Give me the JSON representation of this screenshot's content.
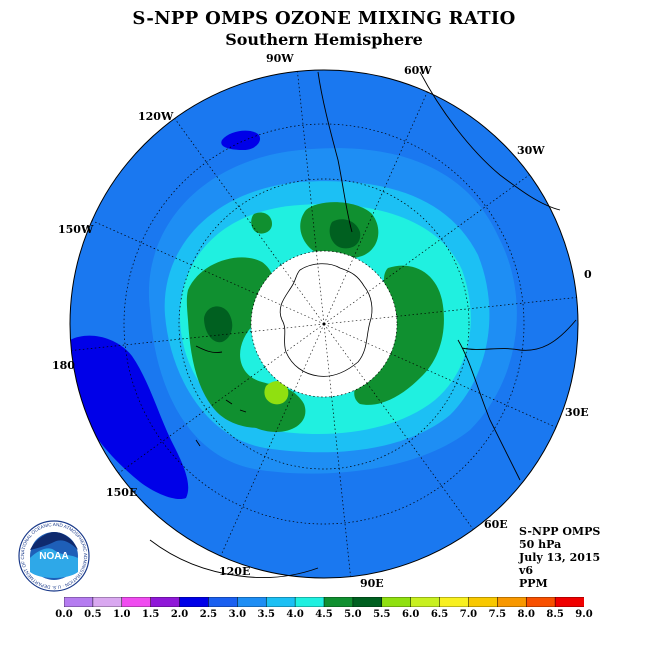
{
  "title": "S-NPP OMPS OZONE MIXING RATIO",
  "subtitle": "Southern Hemisphere",
  "longitude_labels": {
    "w90": "90W",
    "w60": "60W",
    "w30": "30W",
    "e0": "0",
    "e30": "30E",
    "e60": "60E",
    "e90": "90E",
    "e120": "120E",
    "e150": "150E",
    "e180": "180",
    "w150": "150W",
    "w120": "120W"
  },
  "info": {
    "instrument": "S-NPP OMPS",
    "level": "50 hPa",
    "date": "July 13, 2015",
    "version": "v6",
    "units": "PPM"
  },
  "logo": {
    "name": "NOAA",
    "ring_text": "NATIONAL OCEANIC AND ATMOSPHERIC ADMINISTRATION · U.S. DEPARTMENT OF COMMERCE"
  },
  "colorbar": {
    "ticks": [
      "0.0",
      "0.5",
      "1.0",
      "1.5",
      "2.0",
      "2.5",
      "3.0",
      "3.5",
      "4.0",
      "4.5",
      "5.0",
      "5.5",
      "6.0",
      "6.5",
      "7.0",
      "7.5",
      "8.0",
      "8.5",
      "9.0"
    ],
    "colors": [
      "#b57cf0",
      "#d9a8f0",
      "#f04cf0",
      "#9018d8",
      "#0000e8",
      "#1a60f0",
      "#1e8ef4",
      "#1cc0f4",
      "#20f0e0",
      "#109030",
      "#006020",
      "#90e010",
      "#c8f020",
      "#f8f020",
      "#f8c800",
      "#f89800",
      "#f85000",
      "#f00000",
      "#906040"
    ]
  },
  "colors": {
    "ring_ocean": "#1a78f0",
    "inner_blue": "#1e8ef4",
    "light_blue": "#1cc0f4",
    "cyan": "#20f0e0",
    "green": "#109030",
    "dark_green": "#006020",
    "lime": "#90e010",
    "deep_blue": "#0000e8",
    "polar_void": "#ffffff"
  }
}
